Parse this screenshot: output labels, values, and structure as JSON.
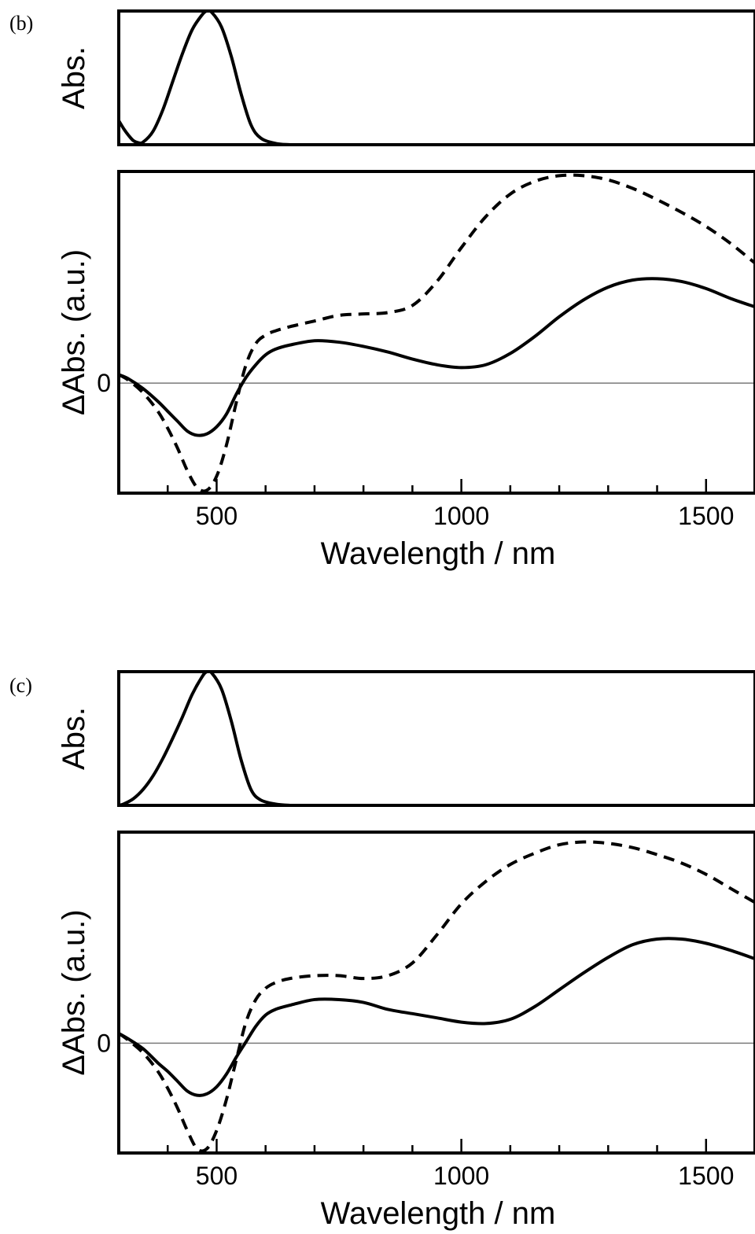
{
  "chart_data": [
    {
      "panel": "(b)",
      "type": "line",
      "subplots": [
        {
          "type": "line",
          "ylabel": "Abs.",
          "xlim": [
            300,
            1600
          ],
          "ylim": [
            0,
            1.0
          ],
          "series": [
            {
              "style": "solid",
              "color": "#000000",
              "x": [
                300,
                310,
                320,
                330,
                340,
                350,
                370,
                390,
                410,
                430,
                450,
                470,
                480,
                490,
                510,
                530,
                550,
                570,
                590,
                620,
                650,
                700,
                800,
                1600
              ],
              "y": [
                0.18,
                0.12,
                0.07,
                0.03,
                0.015,
                0.02,
                0.1,
                0.26,
                0.47,
                0.68,
                0.86,
                0.97,
                1.0,
                0.99,
                0.88,
                0.66,
                0.38,
                0.15,
                0.05,
                0.01,
                0.0,
                -0.005,
                0.0,
                0.0
              ]
            }
          ]
        },
        {
          "type": "line",
          "ylabel": "ΔAbs. (a.u.)",
          "xlabel": "Wavelength / nm",
          "xlim": [
            300,
            1600
          ],
          "ylim": [
            -0.78,
            1.5
          ],
          "yticks": [
            0
          ],
          "ytick_labels": [
            "0"
          ],
          "xticks_major": [
            500,
            1000,
            1500
          ],
          "xtick_labels": [
            "500",
            "1000",
            "1500"
          ],
          "xticks_minor": [
            400,
            600,
            700,
            800,
            900,
            1100,
            1200,
            1300,
            1400
          ],
          "zero_line": true,
          "series": [
            {
              "style": "solid",
              "color": "#000000",
              "x": [
                300,
                320,
                350,
                380,
                400,
                420,
                440,
                460,
                480,
                500,
                520,
                540,
                560,
                580,
                600,
                620,
                650,
                700,
                750,
                800,
                850,
                900,
                950,
                1000,
                1050,
                1100,
                1150,
                1200,
                1250,
                1300,
                1350,
                1400,
                1450,
                1500,
                1550,
                1600
              ],
              "y": [
                0.06,
                0.03,
                -0.04,
                -0.13,
                -0.2,
                -0.27,
                -0.34,
                -0.37,
                -0.36,
                -0.31,
                -0.22,
                -0.08,
                0.04,
                0.13,
                0.2,
                0.24,
                0.27,
                0.3,
                0.29,
                0.26,
                0.22,
                0.17,
                0.13,
                0.11,
                0.13,
                0.21,
                0.33,
                0.47,
                0.59,
                0.68,
                0.73,
                0.74,
                0.72,
                0.67,
                0.6,
                0.54
              ]
            },
            {
              "style": "dashed",
              "color": "#000000",
              "x": [
                300,
                320,
                350,
                380,
                400,
                420,
                440,
                460,
                480,
                500,
                520,
                540,
                560,
                580,
                600,
                620,
                650,
                700,
                750,
                800,
                850,
                900,
                950,
                1000,
                1050,
                1100,
                1150,
                1200,
                1250,
                1300,
                1350,
                1400,
                1450,
                1500,
                1550,
                1600
              ],
              "y": [
                0.06,
                0.02,
                -0.07,
                -0.2,
                -0.32,
                -0.46,
                -0.62,
                -0.74,
                -0.76,
                -0.66,
                -0.44,
                -0.14,
                0.13,
                0.28,
                0.34,
                0.37,
                0.4,
                0.44,
                0.48,
                0.49,
                0.5,
                0.55,
                0.72,
                0.96,
                1.18,
                1.34,
                1.43,
                1.47,
                1.47,
                1.44,
                1.38,
                1.3,
                1.21,
                1.11,
                0.99,
                0.85
              ]
            }
          ]
        }
      ]
    },
    {
      "panel": "(c)",
      "type": "line",
      "subplots": [
        {
          "type": "line",
          "ylabel": "Abs.",
          "xlim": [
            300,
            1600
          ],
          "ylim": [
            0,
            1.0
          ],
          "series": [
            {
              "style": "solid",
              "color": "#000000",
              "x": [
                300,
                310,
                330,
                350,
                370,
                390,
                410,
                430,
                450,
                470,
                480,
                490,
                510,
                530,
                550,
                570,
                590,
                620,
                650,
                700,
                800,
                1600
              ],
              "y": [
                0.0,
                0.01,
                0.05,
                0.12,
                0.22,
                0.35,
                0.5,
                0.66,
                0.83,
                0.96,
                1.0,
                0.99,
                0.87,
                0.63,
                0.34,
                0.12,
                0.04,
                0.01,
                0.0,
                -0.005,
                0.0,
                0.0
              ]
            }
          ]
        },
        {
          "type": "line",
          "ylabel": "ΔAbs. (a.u.)",
          "xlabel": "Wavelength / nm",
          "xlim": [
            300,
            1600
          ],
          "ylim": [
            -0.78,
            1.5
          ],
          "yticks": [
            0
          ],
          "ytick_labels": [
            "0"
          ],
          "xticks_major": [
            500,
            1000,
            1500
          ],
          "xtick_labels": [
            "500",
            "1000",
            "1500"
          ],
          "xticks_minor": [
            400,
            600,
            700,
            800,
            900,
            1100,
            1200,
            1300,
            1400
          ],
          "zero_line": true,
          "series": [
            {
              "style": "solid",
              "color": "#000000",
              "x": [
                300,
                320,
                350,
                380,
                400,
                420,
                440,
                460,
                480,
                500,
                520,
                540,
                560,
                580,
                600,
                620,
                650,
                700,
                750,
                800,
                850,
                900,
                950,
                1000,
                1050,
                1100,
                1150,
                1200,
                1250,
                1300,
                1350,
                1400,
                1450,
                1500,
                1550,
                1600
              ],
              "y": [
                0.07,
                0.03,
                -0.04,
                -0.14,
                -0.2,
                -0.27,
                -0.34,
                -0.37,
                -0.36,
                -0.31,
                -0.22,
                -0.1,
                0.01,
                0.12,
                0.2,
                0.24,
                0.27,
                0.31,
                0.31,
                0.29,
                0.24,
                0.21,
                0.18,
                0.15,
                0.14,
                0.17,
                0.26,
                0.38,
                0.5,
                0.61,
                0.7,
                0.74,
                0.74,
                0.71,
                0.66,
                0.6
              ]
            },
            {
              "style": "dashed",
              "color": "#000000",
              "x": [
                300,
                320,
                350,
                380,
                400,
                420,
                440,
                460,
                480,
                500,
                520,
                540,
                560,
                580,
                600,
                620,
                650,
                700,
                750,
                800,
                850,
                900,
                950,
                1000,
                1050,
                1100,
                1150,
                1200,
                1250,
                1300,
                1350,
                1400,
                1450,
                1500,
                1550,
                1600
              ],
              "y": [
                0.07,
                0.02,
                -0.07,
                -0.2,
                -0.32,
                -0.46,
                -0.62,
                -0.75,
                -0.75,
                -0.62,
                -0.4,
                -0.12,
                0.15,
                0.31,
                0.39,
                0.43,
                0.46,
                0.48,
                0.48,
                0.46,
                0.48,
                0.57,
                0.77,
                0.99,
                1.15,
                1.27,
                1.35,
                1.41,
                1.43,
                1.42,
                1.39,
                1.34,
                1.28,
                1.2,
                1.1,
                1.0
              ]
            }
          ]
        }
      ]
    }
  ]
}
